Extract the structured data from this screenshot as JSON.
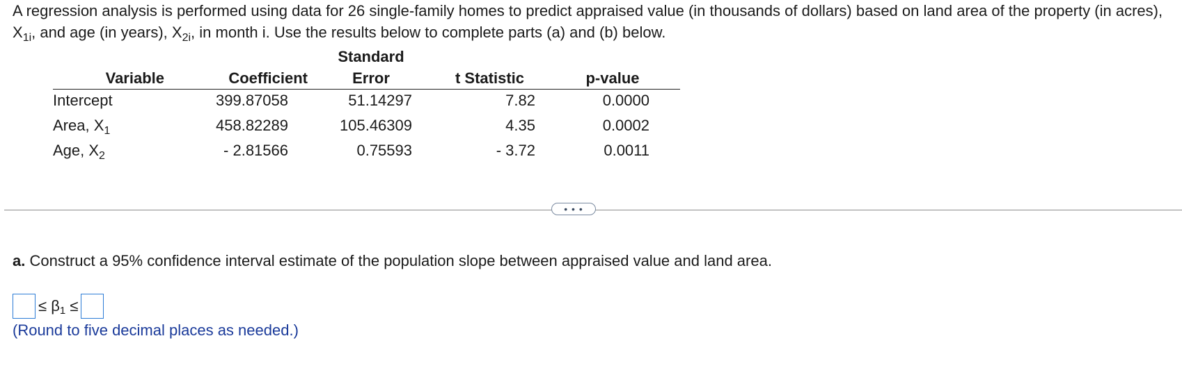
{
  "problem": {
    "intro_part1": "A regression analysis is performed using data for 26 single-family homes to predict appraised value (in thousands of dollars) based on land area of the property (in acres), X",
    "sub1": "1i",
    "intro_part2": ", and age (in years), X",
    "sub2": "2i",
    "intro_part3": ", in month i. Use the results below to complete parts (a) and (b) below."
  },
  "table": {
    "headers": {
      "variable": "Variable",
      "coefficient": "Coefficient",
      "se_top": "Standard",
      "se_bottom": "Error",
      "t": "t Statistic",
      "p": "p-value"
    },
    "rows": [
      {
        "variable": "Intercept",
        "var_sub": "",
        "coefficient": "399.87058",
        "se": "51.14297",
        "t": "7.82",
        "p": "0.0000"
      },
      {
        "variable": "Area, X",
        "var_sub": "1",
        "coefficient": "458.82289",
        "se": "105.46309",
        "t": "4.35",
        "p": "0.0002"
      },
      {
        "variable": "Age, X",
        "var_sub": "2",
        "coefficient": "- 2.81566",
        "se": "0.75593",
        "t": "- 3.72",
        "p": "0.0011"
      }
    ]
  },
  "more_button": {
    "label": "• • •",
    "icon": "ellipsis-icon"
  },
  "part_a": {
    "label": "a.",
    "question": " Construct a 95% confidence interval estimate of the population slope between appraised value and land area.",
    "le1": "≤",
    "beta": "β",
    "beta_sub": "1",
    "le2": "≤",
    "lower_value": "",
    "upper_value": "",
    "hint": "(Round to five decimal places as needed.)"
  },
  "colors": {
    "input_border": "#2b7bd6",
    "hint_text": "#1a3a9a"
  }
}
